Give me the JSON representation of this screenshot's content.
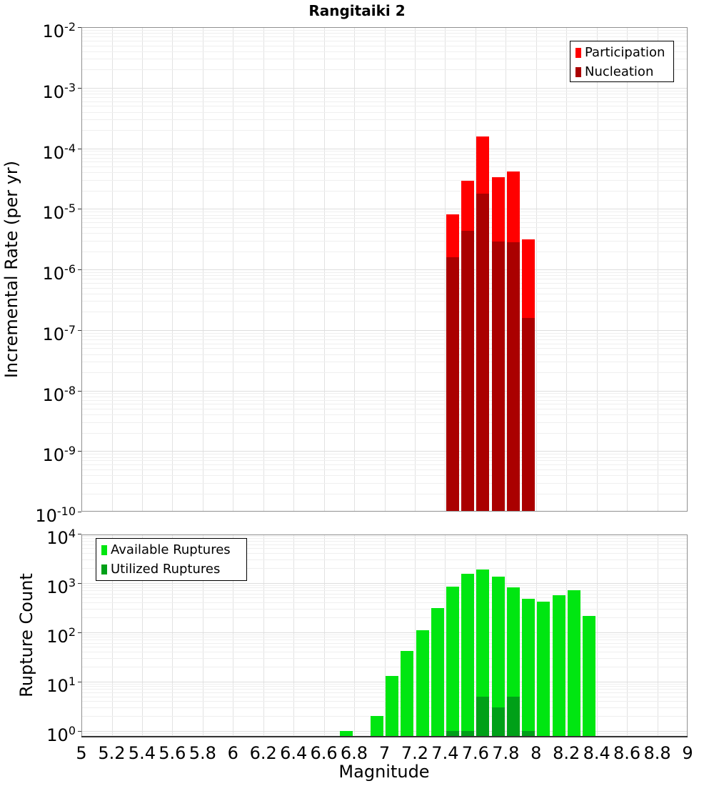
{
  "title": "Rangitaiki 2",
  "colors": {
    "participation": "#ff0000",
    "nucleation": "#aa0000",
    "available": "#00e611",
    "utilized": "#00a018",
    "grid_minor": "#efefef",
    "grid_major": "#dedede",
    "grid_vertical": "#e2e2e2",
    "plot_border": "#909090",
    "axis_line": "#333333",
    "background": "#ffffff"
  },
  "x_axis": {
    "label": "Magnitude",
    "min": 5,
    "max": 9,
    "tick_step": 0.2,
    "tick_labels": [
      "5",
      "5.2",
      "5.4",
      "5.6",
      "5.8",
      "6",
      "6.2",
      "6.4",
      "6.6",
      "6.8",
      "7",
      "7.2",
      "7.4",
      "7.6",
      "7.8",
      "8",
      "8.2",
      "8.4",
      "8.6",
      "8.8",
      "9"
    ]
  },
  "chart_data": [
    {
      "type": "bar",
      "title": "Rangitaiki 2",
      "ylabel": "Incremental Rate (per yr)",
      "xlabel": "Magnitude",
      "y_scale": "log",
      "ylim": [
        1e-10,
        0.01
      ],
      "y_tick_exponents": [
        -2,
        -3,
        -4,
        -5,
        -6,
        -7,
        -8,
        -9,
        -10
      ],
      "xlim": [
        5,
        9
      ],
      "bin_width": 0.1,
      "grid": true,
      "legend_position": "top-right",
      "series": [
        {
          "name": "Participation",
          "color": "#ff0000",
          "bins": [
            [
              7.4,
              8.2e-06
            ],
            [
              7.5,
              2.9e-05
            ],
            [
              7.6,
              0.000155
            ],
            [
              7.7,
              3.3e-05
            ],
            [
              7.8,
              4.1e-05
            ],
            [
              7.9,
              3.1e-06
            ]
          ]
        },
        {
          "name": "Nucleation",
          "color": "#aa0000",
          "bins": [
            [
              7.4,
              1.6e-06
            ],
            [
              7.5,
              4.3e-06
            ],
            [
              7.6,
              1.8e-05
            ],
            [
              7.7,
              2.9e-06
            ],
            [
              7.8,
              2.8e-06
            ],
            [
              7.9,
              1.6e-07
            ]
          ]
        }
      ]
    },
    {
      "type": "bar",
      "ylabel": "Rupture Count",
      "xlabel": "Magnitude",
      "y_scale": "log",
      "ylim": [
        1,
        10000
      ],
      "y_tick_exponents": [
        4,
        3,
        2,
        1,
        0
      ],
      "xlim": [
        5,
        9
      ],
      "bin_width": 0.1,
      "grid": true,
      "legend_position": "top-left",
      "series": [
        {
          "name": "Available Ruptures",
          "color": "#00e611",
          "bins": [
            [
              6.7,
              1
            ],
            [
              6.9,
              2
            ],
            [
              7.0,
              13
            ],
            [
              7.1,
              42
            ],
            [
              7.2,
              110
            ],
            [
              7.3,
              310
            ],
            [
              7.4,
              850
            ],
            [
              7.5,
              1550
            ],
            [
              7.6,
              1850
            ],
            [
              7.7,
              1350
            ],
            [
              7.8,
              800
            ],
            [
              7.9,
              480
            ],
            [
              8.0,
              420
            ],
            [
              8.1,
              570
            ],
            [
              8.2,
              720
            ],
            [
              8.3,
              210
            ]
          ]
        },
        {
          "name": "Utilized Ruptures",
          "color": "#00a018",
          "bins": [
            [
              7.4,
              1
            ],
            [
              7.5,
              1
            ],
            [
              7.6,
              5
            ],
            [
              7.7,
              3
            ],
            [
              7.8,
              5
            ],
            [
              7.9,
              1
            ]
          ]
        }
      ]
    }
  ]
}
